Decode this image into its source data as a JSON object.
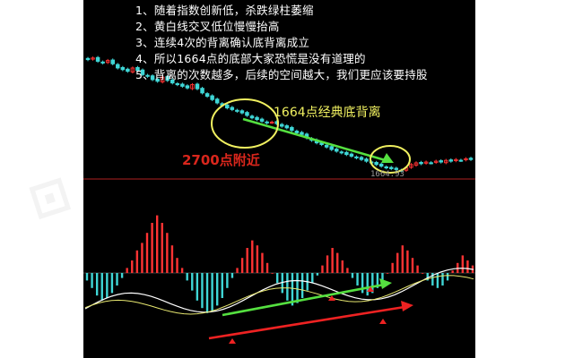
{
  "notes": [
    "1、随着指数创新低，杀跌绿柱萎缩",
    "2、黄白线交叉低位慢慢抬高",
    "3、连续4次的背离确认底背离成立",
    "4、所以1664点的底部大家恐慌是没有道理的",
    "5、背离的次数越多，后续的空间越大，我们更应该要持股"
  ],
  "annotations": {
    "divergence_label": "1664点经典底背离",
    "support_label": "2700点附近",
    "low_value_label": "1664.93"
  },
  "colors": {
    "panel_bg": "#000000",
    "note_text": "#ffffff",
    "up_candle": "#ff3333",
    "down_candle": "#3fd6d6",
    "divergence_arrow": "#55e040",
    "circle": "#f0f060",
    "support_text": "#d9261c",
    "hline": "#b02020"
  },
  "chart_data": [
    {
      "type": "candlestick",
      "title": "",
      "annotation_label": "1664点经典底背离",
      "low_point": 1664.93,
      "price_path": [
        3000,
        3020,
        2980,
        2960,
        2990,
        2950,
        2900,
        2880,
        2860,
        2900,
        2870,
        2820,
        2800,
        2760,
        2740,
        2790,
        2750,
        2720,
        2700,
        2680,
        2660,
        2700,
        2650,
        2600,
        2560,
        2520,
        2480,
        2450,
        2420,
        2400,
        2380,
        2360,
        2330,
        2300,
        2280,
        2260,
        2240,
        2250,
        2230,
        2200,
        2180,
        2150,
        2120,
        2100,
        2060,
        2030,
        2000,
        1980,
        1950,
        1920,
        1900,
        1880,
        1860,
        1840,
        1820,
        1800,
        1780,
        1760,
        1740,
        1720,
        1700,
        1690,
        1680,
        1664.93,
        1700,
        1740,
        1760,
        1750,
        1770,
        1760,
        1780,
        1770,
        1790,
        1780,
        1800,
        1790,
        1810,
        1800
      ]
    },
    {
      "type": "bar",
      "title": "",
      "series": [
        {
          "values": [
            -0.3,
            -0.6,
            -0.9,
            -1.1,
            -1.0,
            -0.8,
            -0.5,
            -0.2,
            0.2,
            0.5,
            0.9,
            1.2,
            1.6,
            2.0,
            2.3,
            2.0,
            1.6,
            1.1,
            0.6,
            0.2,
            -0.3,
            -0.7,
            -1.1,
            -1.4,
            -1.6,
            -1.5,
            -1.3,
            -1.0,
            -0.6,
            -0.2,
            0.2,
            0.6,
            1.0,
            1.3,
            1.1,
            0.8,
            0.4,
            0.0,
            -0.4,
            -0.8,
            -1.1,
            -1.3,
            -1.2,
            -1.0,
            -0.7,
            -0.4,
            -0.1,
            0.3,
            0.7,
            1.0,
            0.8,
            0.5,
            0.2,
            -0.2,
            -0.5,
            -0.8,
            -0.9,
            -0.8,
            -0.6,
            -0.3,
            0.0,
            0.4,
            0.8,
            1.1,
            0.9,
            0.6,
            0.3,
            0.0,
            -0.3,
            -0.5,
            -0.6,
            -0.5,
            -0.3,
            0.1,
            0.4,
            0.7,
            0.5,
            0.3
          ]
        }
      ]
    }
  ]
}
